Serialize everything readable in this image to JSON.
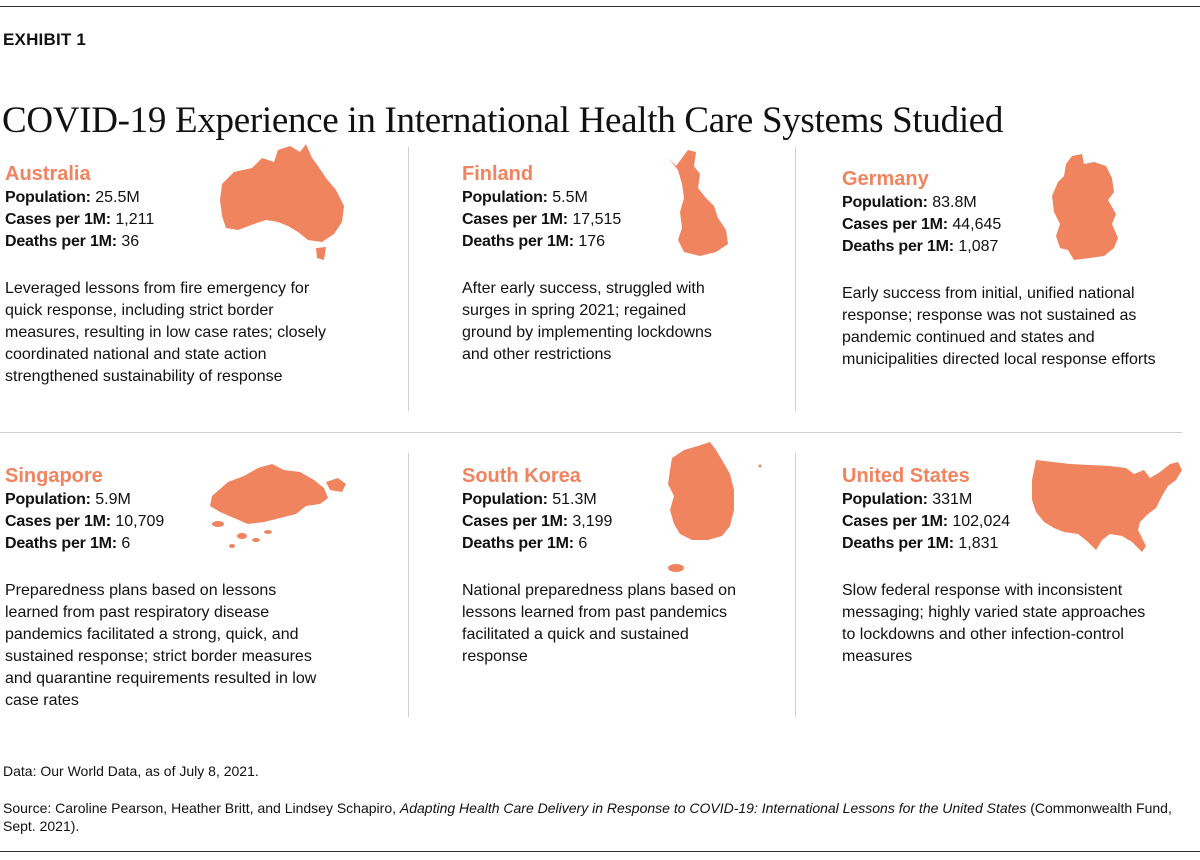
{
  "exhibit_label": "EXHIBIT 1",
  "title": "COVID-19 Experience in International Health Care Systems Studied",
  "stat_labels": {
    "population": "Population:",
    "cases": "Cases per 1M:",
    "deaths": "Deaths per 1M:"
  },
  "countries": [
    {
      "name": "Australia",
      "population": "25.5M",
      "cases": "1,211",
      "deaths": "36",
      "description": "Leveraged lessons from fire emergency for quick response, including strict border measures, resulting in low case rates; closely coordinated national and state action strengthened sustainability of response",
      "map_icon": "australia-map"
    },
    {
      "name": "Finland",
      "population": "5.5M",
      "cases": "17,515",
      "deaths": "176",
      "description": "After early success, struggled with surges in spring 2021; regained ground by implementing lockdowns and other restrictions",
      "map_icon": "finland-map"
    },
    {
      "name": "Germany",
      "population": "83.8M",
      "cases": "44,645",
      "deaths": "1,087",
      "description": "Early success from initial, unified national response; response was not sustained as pandemic continued and states and municipalities directed local response efforts",
      "map_icon": "germany-map"
    },
    {
      "name": "Singapore",
      "population": "5.9M",
      "cases": "10,709",
      "deaths": "6",
      "description": "Preparedness plans based on lessons learned from past respiratory disease pandemics facilitated a strong, quick, and sustained response; strict border measures and quarantine requirements resulted in low case rates",
      "map_icon": "singapore-map"
    },
    {
      "name": "South Korea",
      "population": "51.3M",
      "cases": "3,199",
      "deaths": "6",
      "description": "National preparedness plans based on lessons learned from past pandemics facilitated a quick and sustained response",
      "map_icon": "south-korea-map"
    },
    {
      "name": "United States",
      "population": "331M",
      "cases": "102,024",
      "deaths": "1,831",
      "description": "Slow federal response with inconsistent messaging; highly varied state approaches to lockdowns and other infection-control measures",
      "map_icon": "united-states-map"
    }
  ],
  "data_note": "Data: Our World Data, as of July 8, 2021.",
  "source": {
    "prefix": "Source: Caroline Pearson, Heather Britt, and Lindsey Schapiro, ",
    "title": "Adapting Health Care Delivery in Response to COVID-19: International Lessons for the United States",
    "suffix": " (Commonwealth Fund, Sept. 2021)."
  },
  "colors": {
    "accent": "#f0845f",
    "text": "#111111",
    "rule": "#cfcfcf"
  }
}
